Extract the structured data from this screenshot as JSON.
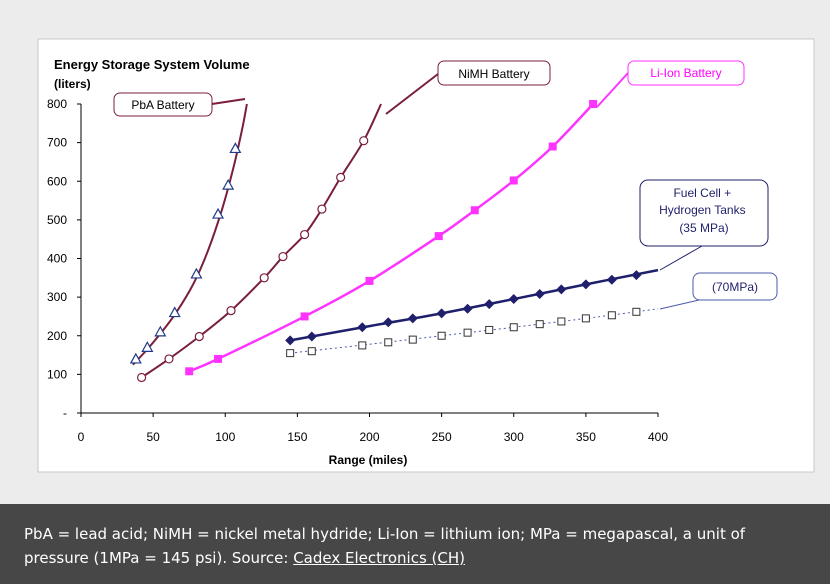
{
  "chart_data": {
    "type": "line",
    "title": "Energy Storage System Volume",
    "ylabel": "(liters)",
    "xlabel": "Range (miles)",
    "xlim": [
      0,
      400
    ],
    "ylim": [
      0,
      800
    ],
    "x_ticks": [
      "0",
      "50",
      "100",
      "150",
      "200",
      "250",
      "300",
      "350",
      "400"
    ],
    "y_ticks": [
      "-",
      "100",
      "200",
      "300",
      "400",
      "500",
      "600",
      "700",
      "800"
    ],
    "grid": false,
    "series": [
      {
        "name": "PbA Battery",
        "color": "#7a1f3a",
        "marker": "triangle",
        "points": [
          [
            38,
            140
          ],
          [
            46,
            170
          ],
          [
            55,
            210
          ],
          [
            65,
            260
          ],
          [
            80,
            360
          ],
          [
            95,
            515
          ],
          [
            102,
            590
          ],
          [
            107,
            685
          ]
        ],
        "curve": [
          [
            36,
            125
          ],
          [
            46,
            165
          ],
          [
            56,
            210
          ],
          [
            66,
            260
          ],
          [
            78,
            335
          ],
          [
            88,
            420
          ],
          [
            98,
            530
          ],
          [
            106,
            640
          ],
          [
            112,
            740
          ],
          [
            115,
            800
          ]
        ]
      },
      {
        "name": "NiMH Battery",
        "color": "#7a1f3a",
        "marker": "circle",
        "points": [
          [
            42,
            92
          ],
          [
            61,
            140
          ],
          [
            82,
            198
          ],
          [
            104,
            265
          ],
          [
            127,
            350
          ],
          [
            140,
            405
          ],
          [
            155,
            462
          ],
          [
            167,
            528
          ],
          [
            180,
            610
          ],
          [
            196,
            705
          ]
        ],
        "curve": [
          [
            42,
            92
          ],
          [
            61,
            140
          ],
          [
            82,
            198
          ],
          [
            104,
            265
          ],
          [
            127,
            350
          ],
          [
            140,
            405
          ],
          [
            155,
            462
          ],
          [
            167,
            528
          ],
          [
            180,
            610
          ],
          [
            196,
            705
          ],
          [
            208,
            800
          ]
        ]
      },
      {
        "name": "Li-Ion Battery",
        "color": "#ff33ff",
        "marker": "square-filled",
        "points": [
          [
            75,
            108
          ],
          [
            95,
            140
          ],
          [
            155,
            250
          ],
          [
            200,
            342
          ],
          [
            248,
            458
          ],
          [
            273,
            525
          ],
          [
            300,
            602
          ],
          [
            327,
            690
          ],
          [
            355,
            800
          ]
        ],
        "curve": [
          [
            75,
            108
          ],
          [
            95,
            140
          ],
          [
            155,
            250
          ],
          [
            200,
            342
          ],
          [
            248,
            458
          ],
          [
            273,
            525
          ],
          [
            300,
            602
          ],
          [
            327,
            690
          ],
          [
            355,
            800
          ]
        ]
      },
      {
        "name": "Fuel Cell + Hydrogen Tanks (35 MPa)",
        "color": "#1f1f6b",
        "marker": "diamond",
        "points": [
          [
            145,
            188
          ],
          [
            160,
            198
          ],
          [
            195,
            222
          ],
          [
            213,
            235
          ],
          [
            230,
            245
          ],
          [
            250,
            258
          ],
          [
            268,
            270
          ],
          [
            283,
            282
          ],
          [
            300,
            295
          ],
          [
            318,
            308
          ],
          [
            333,
            320
          ],
          [
            350,
            333
          ],
          [
            368,
            345
          ],
          [
            385,
            357
          ]
        ],
        "curve": [
          [
            145,
            188
          ],
          [
            200,
            225
          ],
          [
            250,
            258
          ],
          [
            300,
            295
          ],
          [
            350,
            333
          ],
          [
            400,
            370
          ]
        ]
      },
      {
        "name": "(70MPa)",
        "color": "#4a5aa8",
        "marker": "square-open",
        "points": [
          [
            145,
            155
          ],
          [
            160,
            160
          ],
          [
            195,
            175
          ],
          [
            213,
            183
          ],
          [
            230,
            190
          ],
          [
            250,
            200
          ],
          [
            268,
            208
          ],
          [
            283,
            215
          ],
          [
            300,
            222
          ],
          [
            318,
            230
          ],
          [
            333,
            237
          ],
          [
            350,
            245
          ],
          [
            368,
            253
          ],
          [
            385,
            262
          ]
        ],
        "curve": [
          [
            145,
            155
          ],
          [
            200,
            178
          ],
          [
            250,
            200
          ],
          [
            300,
            222
          ],
          [
            350,
            245
          ],
          [
            385,
            262
          ],
          [
            400,
            270
          ]
        ]
      }
    ]
  },
  "caption": {
    "text": "PbA = lead acid; NiMH = nickel metal hydride; Li-Ion = lithium ion; MPa = megapascal, a unit of pressure (1MPa = 145 psi). Source: ",
    "link_text": "Cadex Electronics (CH)"
  }
}
